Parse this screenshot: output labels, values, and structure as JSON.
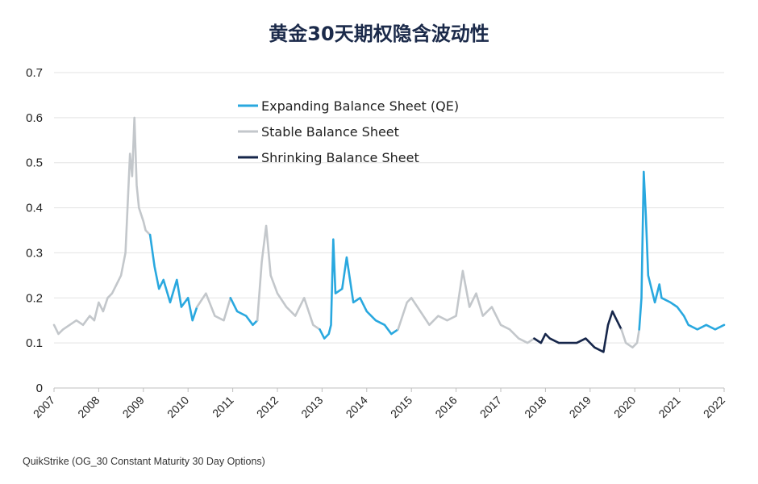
{
  "chart_data": {
    "type": "line",
    "title": "黄金30天期权隐含波动性",
    "source": "QuikStrike (OG_30 Constant Maturity 30 Day Options)",
    "ylim": [
      0,
      0.7
    ],
    "yticks": [
      "0",
      "0.1",
      "0.2",
      "0.3",
      "0.4",
      "0.5",
      "0.6",
      "0.7"
    ],
    "xlim": [
      2007,
      2022
    ],
    "xticks": [
      "2007",
      "2008",
      "2009",
      "2010",
      "2011",
      "2012",
      "2013",
      "2014",
      "2015",
      "2016",
      "2017",
      "2018",
      "2019",
      "2020",
      "2021",
      "2022"
    ],
    "grid": "horizontal",
    "legend_position": "top-center",
    "legend": [
      {
        "name": "Expanding Balance Sheet (QE)",
        "color": "#29a8df"
      },
      {
        "name": "Stable Balance Sheet",
        "color": "#c3c7cb"
      },
      {
        "name": "Shrinking Balance Sheet",
        "color": "#16264a"
      }
    ],
    "series": [
      {
        "name": "Stable Balance Sheet",
        "color": "#c3c7cb",
        "x": [
          2007.0,
          2007.1,
          2007.2,
          2007.35,
          2007.5,
          2007.65,
          2007.8,
          2007.9,
          2008.0,
          2008.1,
          2008.2,
          2008.3,
          2008.4,
          2008.5,
          2008.6,
          2008.7,
          2008.75,
          2008.8,
          2008.85,
          2008.9,
          2009.0,
          2009.05,
          2009.15
        ],
        "y": [
          0.14,
          0.12,
          0.13,
          0.14,
          0.15,
          0.14,
          0.16,
          0.15,
          0.19,
          0.17,
          0.2,
          0.21,
          0.23,
          0.25,
          0.3,
          0.52,
          0.47,
          0.6,
          0.45,
          0.4,
          0.37,
          0.35,
          0.34
        ]
      },
      {
        "name": "Expanding Balance Sheet (QE)",
        "color": "#29a8df",
        "x": [
          2009.15,
          2009.25,
          2009.35,
          2009.45,
          2009.6,
          2009.75,
          2009.85,
          2010.0,
          2010.1,
          2010.2
        ],
        "y": [
          0.34,
          0.27,
          0.22,
          0.24,
          0.19,
          0.24,
          0.18,
          0.2,
          0.15,
          0.18
        ]
      },
      {
        "name": "Stable Balance Sheet",
        "color": "#c3c7cb",
        "x": [
          2010.2,
          2010.4,
          2010.6,
          2010.8,
          2010.95
        ],
        "y": [
          0.18,
          0.21,
          0.16,
          0.15,
          0.2
        ]
      },
      {
        "name": "Expanding Balance Sheet (QE)",
        "color": "#29a8df",
        "x": [
          2010.95,
          2011.1,
          2011.3,
          2011.45,
          2011.55
        ],
        "y": [
          0.2,
          0.17,
          0.16,
          0.14,
          0.15
        ]
      },
      {
        "name": "Stable Balance Sheet",
        "color": "#c3c7cb",
        "x": [
          2011.55,
          2011.65,
          2011.75,
          2011.85,
          2012.0,
          2012.2,
          2012.4,
          2012.6,
          2012.8,
          2012.95
        ],
        "y": [
          0.15,
          0.28,
          0.36,
          0.25,
          0.21,
          0.18,
          0.16,
          0.2,
          0.14,
          0.13
        ]
      },
      {
        "name": "Expanding Balance Sheet (QE)",
        "color": "#29a8df",
        "x": [
          2012.95,
          2013.05,
          2013.15,
          2013.2,
          2013.25,
          2013.3,
          2013.45,
          2013.55,
          2013.7,
          2013.85,
          2014.0,
          2014.2,
          2014.4,
          2014.55,
          2014.7
        ],
        "y": [
          0.13,
          0.11,
          0.12,
          0.14,
          0.33,
          0.21,
          0.22,
          0.29,
          0.19,
          0.2,
          0.17,
          0.15,
          0.14,
          0.12,
          0.13
        ]
      },
      {
        "name": "Stable Balance Sheet",
        "color": "#c3c7cb",
        "x": [
          2014.7,
          2014.9,
          2015.0,
          2015.2,
          2015.4,
          2015.6,
          2015.8,
          2016.0,
          2016.15,
          2016.3,
          2016.45,
          2016.6,
          2016.8,
          2017.0,
          2017.2,
          2017.4,
          2017.6,
          2017.75
        ],
        "y": [
          0.13,
          0.19,
          0.2,
          0.17,
          0.14,
          0.16,
          0.15,
          0.16,
          0.26,
          0.18,
          0.21,
          0.16,
          0.18,
          0.14,
          0.13,
          0.11,
          0.1,
          0.11
        ]
      },
      {
        "name": "Shrinking Balance Sheet",
        "color": "#16264a",
        "x": [
          2017.75,
          2017.9,
          2018.0,
          2018.1,
          2018.3,
          2018.5,
          2018.7,
          2018.9,
          2019.1,
          2019.3,
          2019.4,
          2019.5,
          2019.6,
          2019.7
        ],
        "y": [
          0.11,
          0.1,
          0.12,
          0.11,
          0.1,
          0.1,
          0.1,
          0.11,
          0.09,
          0.08,
          0.14,
          0.17,
          0.15,
          0.13
        ]
      },
      {
        "name": "Stable Balance Sheet",
        "color": "#c3c7cb",
        "x": [
          2019.7,
          2019.8,
          2019.95,
          2020.05,
          2020.1
        ],
        "y": [
          0.13,
          0.1,
          0.09,
          0.1,
          0.13
        ]
      },
      {
        "name": "Expanding Balance Sheet (QE)",
        "color": "#29a8df",
        "x": [
          2020.1,
          2020.15,
          2020.2,
          2020.25,
          2020.3,
          2020.45,
          2020.55,
          2020.6,
          2020.8,
          2020.95,
          2021.1,
          2021.2,
          2021.4,
          2021.6,
          2021.8,
          2022.0
        ],
        "y": [
          0.13,
          0.2,
          0.48,
          0.38,
          0.25,
          0.19,
          0.23,
          0.2,
          0.19,
          0.18,
          0.16,
          0.14,
          0.13,
          0.14,
          0.13,
          0.14
        ]
      }
    ]
  }
}
